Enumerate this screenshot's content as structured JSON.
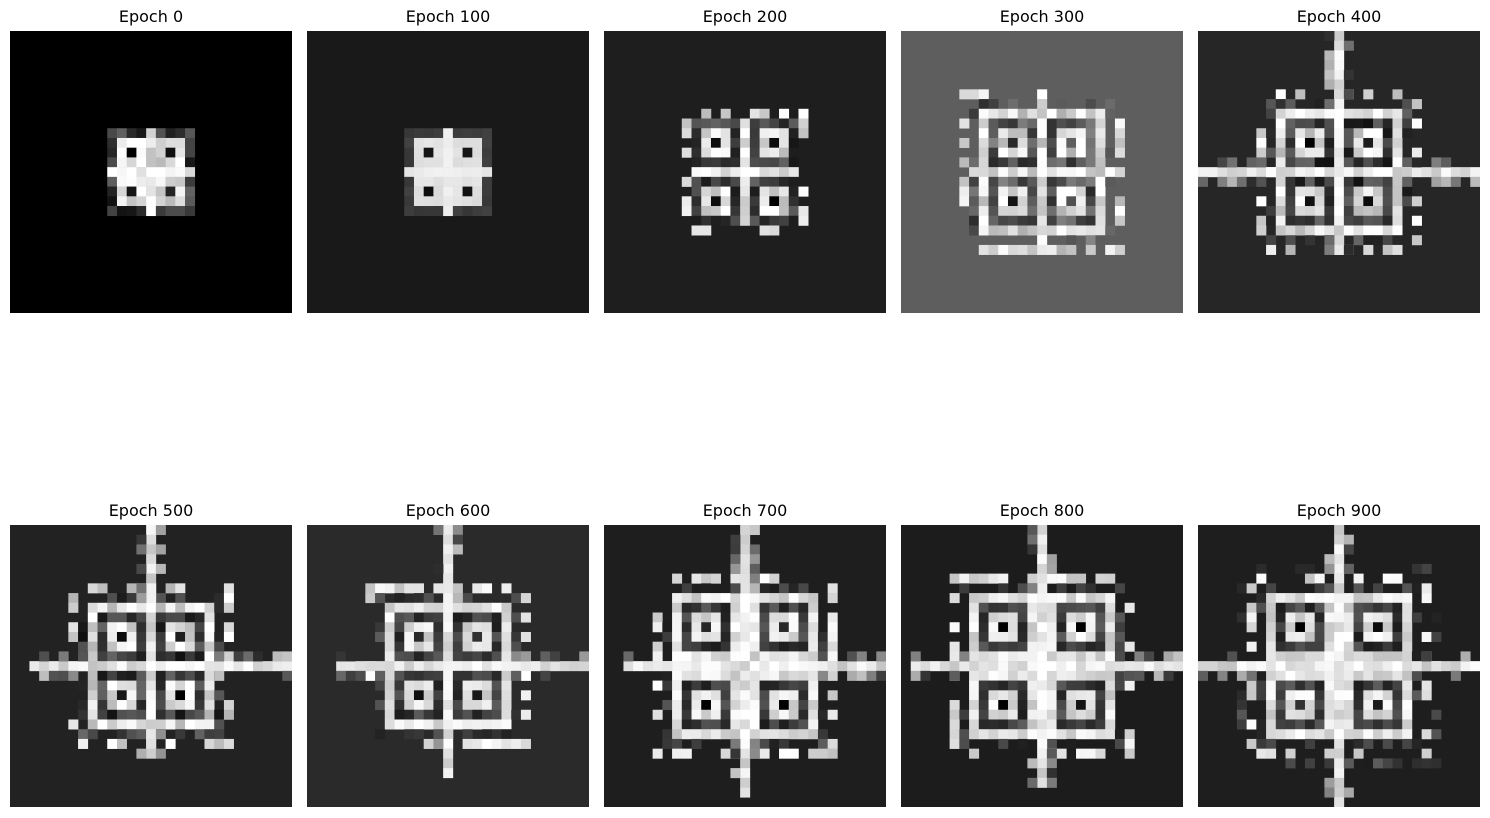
{
  "panels": [
    {
      "title": "Epoch 0",
      "background": "#000000"
    },
    {
      "title": "Epoch 100",
      "background": "#191919"
    },
    {
      "title": "Epoch 200",
      "background": "#1e1e1e"
    },
    {
      "title": "Epoch 300",
      "background": "#5e5e5e"
    },
    {
      "title": "Epoch 400",
      "background": "#262626"
    },
    {
      "title": "Epoch 500",
      "background": "#222222"
    },
    {
      "title": "Epoch 600",
      "background": "#2a2a2a"
    },
    {
      "title": "Epoch 700",
      "background": "#1e1e1e"
    },
    {
      "title": "Epoch 800",
      "background": "#1c1c1c"
    },
    {
      "title": "Epoch 900",
      "background": "#1e1e1e"
    }
  ]
}
